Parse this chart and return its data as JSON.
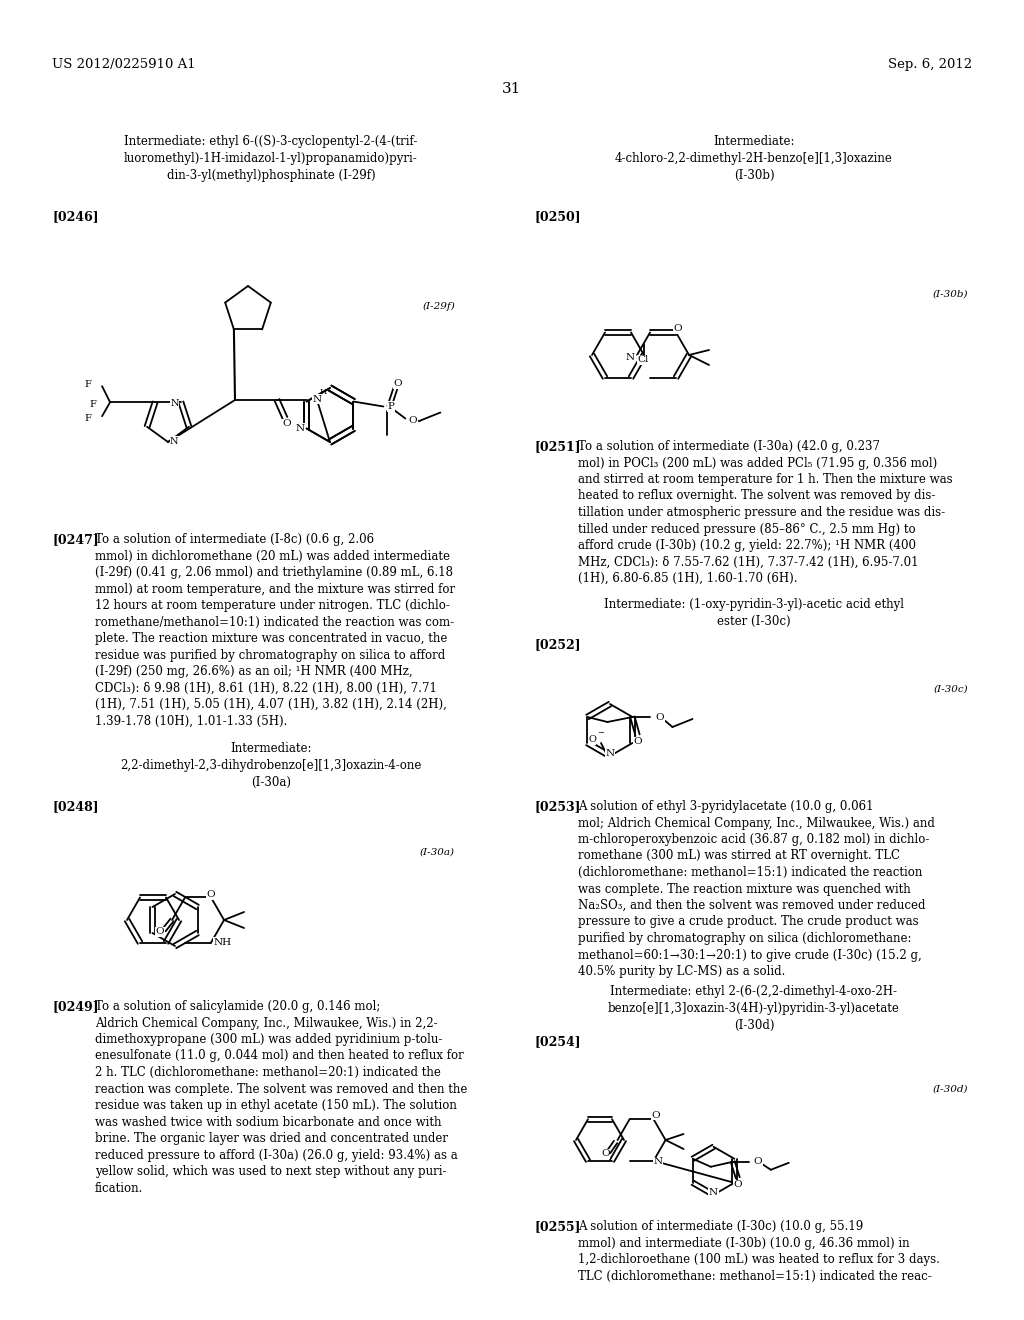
{
  "bg_color": "#ffffff",
  "page_number": "31",
  "header_left": "US 2012/0225910 A1",
  "header_right": "Sep. 6, 2012",
  "left_col_title1": "Intermediate: ethyl 6-((S)-3-cyclopentyl-2-(4-(trif-\nluoromethyl)-1H-imidazol-1-yl)propanamido)pyri-\ndin-3-yl(methyl)phosphinate (I-29f)",
  "para_0246": "[0246]",
  "label_I29f": "(I-29f)",
  "para_0247": "[0247]",
  "text_0247": "To a solution of intermediate (I-8c) (0.6 g, 2.06\nmmol) in dichloromethane (20 mL) was added intermediate\n(I-29f) (0.41 g, 2.06 mmol) and triethylamine (0.89 mL, 6.18\nmmol) at room temperature, and the mixture was stirred for\n12 hours at room temperature under nitrogen. TLC (dichlo-\nromethane/methanol=10:1) indicated the reaction was com-\nplete. The reaction mixture was concentrated in vacuo, the\nresidue was purified by chromatography on silica to afford\n(I-29f) (250 mg, 26.6%) as an oil; ¹H NMR (400 MHz,\nCDCl₃): δ 9.98 (1H), 8.61 (1H), 8.22 (1H), 8.00 (1H), 7.71\n(1H), 7.51 (1H), 5.05 (1H), 4.07 (1H), 3.82 (1H), 2.14 (2H),\n1.39-1.78 (10H), 1.01-1.33 (5H).",
  "left_col_title2": "Intermediate:\n2,2-dimethyl-2,3-dihydrobenzo[e][1,3]oxazin-4-one\n(I-30a)",
  "para_0248": "[0248]",
  "label_I30a": "(I-30a)",
  "para_0249": "[0249]",
  "text_0249": "To a solution of salicylamide (20.0 g, 0.146 mol;\nAldrich Chemical Company, Inc., Milwaukee, Wis.) in 2,2-\ndimethoxypropane (300 mL) was added pyridinium p-tolu-\nenesulfonate (11.0 g, 0.044 mol) and then heated to reflux for\n2 h. TLC (dichloromethane: methanol=20:1) indicated the\nreaction was complete. The solvent was removed and then the\nresidue was taken up in ethyl acetate (150 mL). The solution\nwas washed twice with sodium bicarbonate and once with\nbrine. The organic layer was dried and concentrated under\nreduced pressure to afford (I-30a) (26.0 g, yield: 93.4%) as a\nyellow solid, which was used to next step without any puri-\nfication.",
  "right_col_title1": "Intermediate:\n4-chloro-2,2-dimethyl-2H-benzo[e][1,3]oxazine\n(I-30b)",
  "para_0250": "[0250]",
  "label_I30b": "(I-30b)",
  "para_0251": "[0251]",
  "text_0251": "To a solution of intermediate (I-30a) (42.0 g, 0.237\nmol) in POCl₃ (200 mL) was added PCl₅ (71.95 g, 0.356 mol)\nand stirred at room temperature for 1 h. Then the mixture was\nheated to reflux overnight. The solvent was removed by dis-\ntillation under atmospheric pressure and the residue was dis-\ntilled under reduced pressure (85–86° C., 2.5 mm Hg) to\nafford crude (I-30b) (10.2 g, yield: 22.7%); ¹H NMR (400\nMHz, CDCl₃): δ 7.55-7.62 (1H), 7.37-7.42 (1H), 6.95-7.01\n(1H), 6.80-6.85 (1H), 1.60-1.70 (6H).",
  "right_col_title2": "Intermediate: (1-oxy-pyridin-3-yl)-acetic acid ethyl\nester (I-30c)",
  "para_0252": "[0252]",
  "label_I30c": "(I-30c)",
  "para_0253": "[0253]",
  "text_0253": "A solution of ethyl 3-pyridylacetate (10.0 g, 0.061\nmol; Aldrich Chemical Company, Inc., Milwaukee, Wis.) and\nm-chloroperoxybenzoic acid (36.87 g, 0.182 mol) in dichlo-\nromethane (300 mL) was stirred at RT overnight. TLC\n(dichloromethane: methanol=15:1) indicated the reaction\nwas complete. The reaction mixture was quenched with\nNa₂SO₃, and then the solvent was removed under reduced\npressure to give a crude product. The crude product was\npurified by chromatography on silica (dichloromethane:\nmethanol=60:1→30:1→20:1) to give crude (I-30c) (15.2 g,\n40.5% purity by LC-MS) as a solid.",
  "right_col_title3": "Intermediate: ethyl 2-(6-(2,2-dimethyl-4-oxo-2H-\nbenzo[e][1,3]oxazin-3(4H)-yl)pyridin-3-yl)acetate\n(I-30d)",
  "para_0254": "[0254]",
  "label_I30d": "(I-30d)",
  "para_0255": "[0255]",
  "text_0255": "A solution of intermediate (I-30c) (10.0 g, 55.19\nmmol) and intermediate (I-30b) (10.0 g, 46.36 mmol) in\n1,2-dichloroethane (100 mL) was heated to reflux for 3 days.\nTLC (dichloromethane: methanol=15:1) indicated the reac-"
}
